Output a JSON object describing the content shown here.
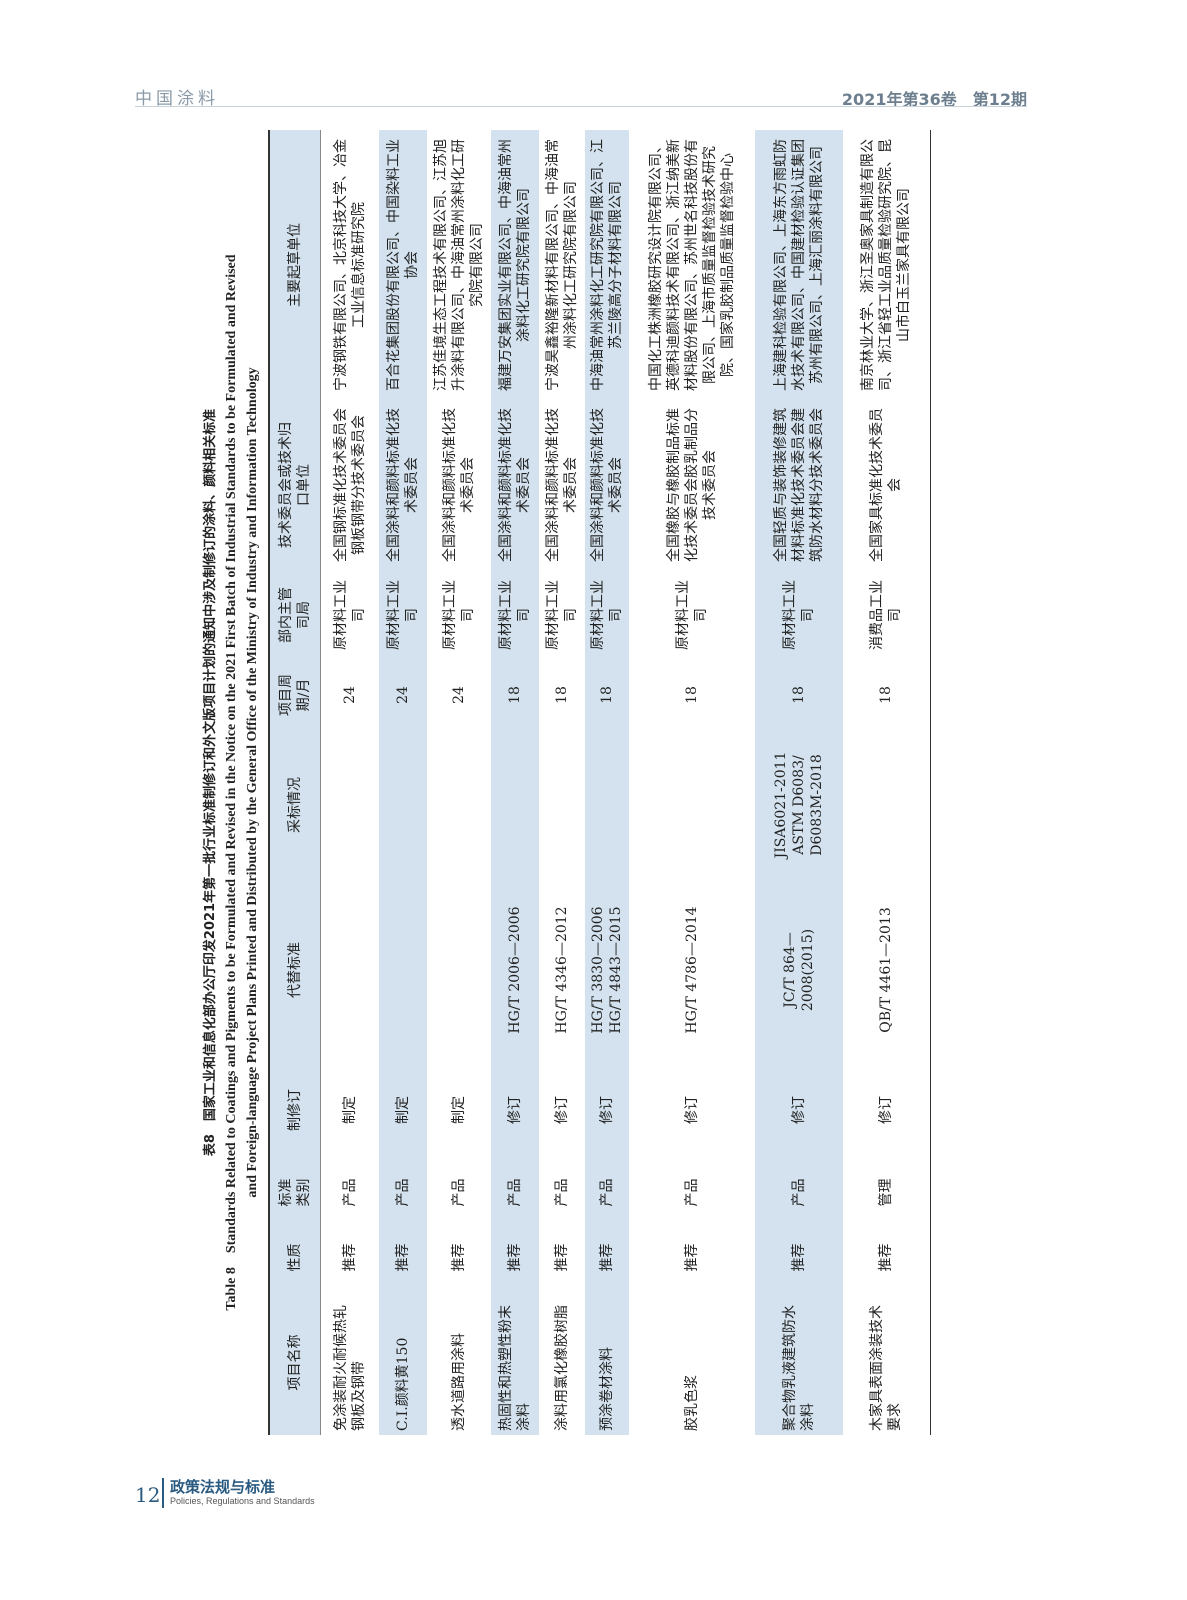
{
  "header": {
    "journal": "中国涂料",
    "issue": "2021年第36卷　第12期"
  },
  "footer": {
    "page": "12",
    "section_cn": "政策法规与标准",
    "section_en": "Policies, Regulations and Standards"
  },
  "table": {
    "caption_cn": "表8　国家工业和信息化部办公厅印发2021年第一批行业标准制修订和外文版项目计划的通知中涉及制修订的涂料、颜料相关标准",
    "caption_en_1": "Table 8　Standards Related to Coatings and Pigments to be Formulated and Revised in the Notice on the 2021 First Batch of Industrial Standards to be Formulated and Revised",
    "caption_en_2": "and Foreign-language Project Plans Printed and Distributed by the General Office of the Ministry of Industry and Information Technology",
    "shade_color": "#d3e2ee",
    "columns": [
      "项目名称",
      "性质",
      "标准\n类别",
      "制修订",
      "代替标准",
      "采标情况",
      "项目周\n期/月",
      "部内主管\n司局",
      "技术委员会或技术归\n口单位",
      "主要起草单位"
    ],
    "rows": [
      [
        "免涂装耐火耐候热轧钢板及钢带",
        "推荐",
        "产品",
        "制定",
        "",
        "",
        "24",
        "原材料工业司",
        "全国钢标准化技术委员会钢板钢带分技术委员会",
        "宁波钢铁有限公司、北京科技大学、冶金工业信息标准研究院"
      ],
      [
        "C.I.颜料黄150",
        "推荐",
        "产品",
        "制定",
        "",
        "",
        "24",
        "原材料工业司",
        "全国涂料和颜料标准化技术委员会",
        "百合花集团股份有限公司、中国染料工业协会"
      ],
      [
        "透水道路用涂料",
        "推荐",
        "产品",
        "制定",
        "",
        "",
        "24",
        "原材料工业司",
        "全国涂料和颜料标准化技术委员会",
        "江苏佳境生态工程技术有限公司、江苏旭升涂料有限公司、中海油常州涂料化工研究院有限公司"
      ],
      [
        "热固性和热塑性粉末涂料",
        "推荐",
        "产品",
        "修订",
        "HG/T 2006—2006",
        "",
        "18",
        "原材料工业司",
        "全国涂料和颜料标准化技术委员会",
        "福建万安集团实业有限公司、中海油常州涂料化工研究院有限公司"
      ],
      [
        "涂料用氯化橡胶树脂",
        "推荐",
        "产品",
        "修订",
        "HG/T 4346—2012",
        "",
        "18",
        "原材料工业司",
        "全国涂料和颜料标准化技术委员会",
        "宁波昊鑫裕隆新材料有限公司、中海油常州涂料化工研究院有限公司"
      ],
      [
        "预涂卷材涂料",
        "推荐",
        "产品",
        "修订",
        "HG/T 3830—2006\nHG/T 4843—2015",
        "",
        "18",
        "原材料工业司",
        "全国涂料和颜料标准化技术委员会",
        "中海油常州涂料化工研究院有限公司、江苏兰陵高分子材料有限公司"
      ],
      [
        "胶乳色浆",
        "推荐",
        "产品",
        "修订",
        "HG/T 4786—2014",
        "",
        "18",
        "原材料工业司",
        "全国橡胶与橡胶制品标准化技术委员会胶乳制品分技术委员会",
        "中国化工株洲橡胶研究设计院有限公司、英德科迪颜料技术有限公司、浙江纳美新材料股份有限公司、苏州世名科技股份有限公司、上海市质量监督检验技术研究院、国家乳胶制品质量监督检验中心"
      ],
      [
        "聚合物乳液建筑防水涂料",
        "推荐",
        "产品",
        "修订",
        "JC/T 864—\n2008(2015)",
        "JISA6021-2011\nASTM D6083/\nD6083M-2018",
        "18",
        "原材料工业司",
        "全国轻质与装饰装修建筑材料标准化技术委员会建筑防水材料分技术委员会",
        "上海建科检验有限公司、上海东方雨虹防水技术有限公司、中国建材检验认证集团苏州有限公司、上海汇丽涂料有限公司"
      ],
      [
        "木家具表面涂装技术要求",
        "推荐",
        "管理",
        "修订",
        "QB/T 4461—2013",
        "",
        "18",
        "消费品工业司",
        "全国家具标准化技术委员会",
        "南京林业大学、浙江圣奥家具制造有限公司、浙江省轻工业品质量检验研究院、昆山市白玉兰家具有限公司"
      ]
    ]
  }
}
